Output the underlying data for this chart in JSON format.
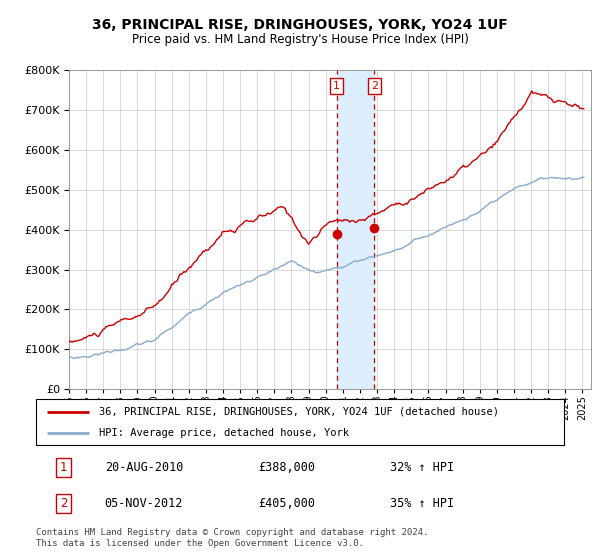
{
  "title": "36, PRINCIPAL RISE, DRINGHOUSES, YORK, YO24 1UF",
  "subtitle": "Price paid vs. HM Land Registry's House Price Index (HPI)",
  "ylim": [
    0,
    800000
  ],
  "xlim_start": 1995,
  "xlim_end": 2025.5,
  "sale1_date": 2010.63,
  "sale1_price": 388000,
  "sale1_label": "1",
  "sale2_date": 2012.84,
  "sale2_price": 405000,
  "sale2_label": "2",
  "legend_line1": "36, PRINCIPAL RISE, DRINGHOUSES, YORK, YO24 1UF (detached house)",
  "legend_line2": "HPI: Average price, detached house, York",
  "table_row1_num": "1",
  "table_row1_date": "20-AUG-2010",
  "table_row1_price": "£388,000",
  "table_row1_hpi": "32% ↑ HPI",
  "table_row2_num": "2",
  "table_row2_date": "05-NOV-2012",
  "table_row2_price": "£405,000",
  "table_row2_hpi": "35% ↑ HPI",
  "footer": "Contains HM Land Registry data © Crown copyright and database right 2024.\nThis data is licensed under the Open Government Licence v3.0.",
  "line_color_red": "#cc0000",
  "line_color_blue": "#88aacc",
  "shade_color": "#ddeeff",
  "marker_box_color": "#cc0000",
  "bg_color": "#ffffff"
}
